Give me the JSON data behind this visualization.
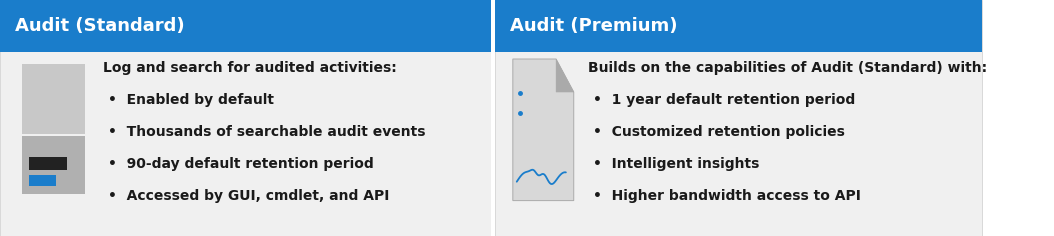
{
  "header_bg_color": "#1a7dcb",
  "body_bg_color": "#f0f0f0",
  "white": "#ffffff",
  "border_color": "#cccccc",
  "header_text_color": "#ffffff",
  "body_text_color": "#1a1a1a",
  "left_header": "Audit (Standard)",
  "right_header": "Audit (Premium)",
  "left_intro": "Log and search for audited activities:",
  "left_bullets": [
    "Enabled by default",
    "Thousands of searchable audit events",
    "90-day default retention period",
    "Accessed by GUI, cmdlet, and API"
  ],
  "right_intro": "Builds on the capabilities of Audit (Standard) with:",
  "right_bullets": [
    "1 year default retention period",
    "Customized retention policies",
    "Intelligent insights",
    "Higher bandwidth access to API"
  ],
  "header_fontsize": 13,
  "intro_fontsize": 10,
  "bullet_fontsize": 10,
  "fig_width": 10.54,
  "fig_height": 2.36,
  "dpi": 100
}
